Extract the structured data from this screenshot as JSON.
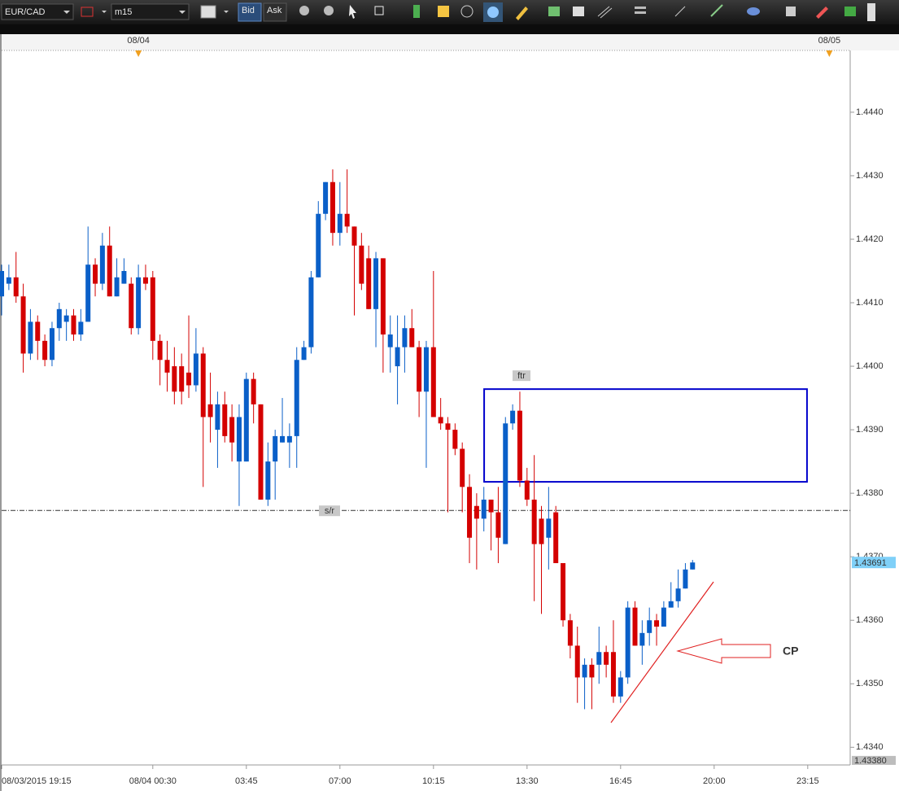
{
  "toolbar": {
    "symbol": "EUR/CAD",
    "timeframe": "m15",
    "bid": "Bid",
    "ask": "Ask"
  },
  "chart_data": {
    "type": "candlestick",
    "open": [
      1.4411,
      1.4413,
      1.4414,
      1.4411,
      1.4402,
      1.4407,
      1.4404,
      1.4401,
      1.4406,
      1.4407,
      1.4408,
      1.4405,
      1.4407,
      1.4416,
      1.4413,
      1.4419,
      1.4411,
      1.4413,
      1.4413,
      1.4406,
      1.4414,
      1.4414,
      1.4404,
      1.4401,
      1.44,
      1.44,
      1.4399,
      1.4397,
      1.4402,
      1.4394,
      1.439,
      1.4394,
      1.4392,
      1.4385,
      1.4385,
      1.4398,
      1.4394,
      1.4379,
      1.4385,
      1.4388,
      1.4388,
      1.4389,
      1.4401,
      1.4403,
      1.4414,
      1.4424,
      1.4429,
      1.4421,
      1.4424,
      1.4422,
      1.4419,
      1.4417,
      1.4409,
      1.4417,
      1.4403,
      1.44,
      1.4403,
      1.4406,
      1.4403,
      1.4396,
      1.4403,
      1.4392,
      1.4391,
      1.439,
      1.4387,
      1.4381,
      1.4378,
      1.4376,
      1.4379,
      1.4377,
      1.4372,
      1.4391,
      1.4393,
      1.4382,
      1.4379,
      1.4376,
      1.4373,
      1.4377,
      1.4369,
      1.436,
      1.4356,
      1.4351,
      1.4353,
      1.4353,
      1.4355,
      1.4355,
      1.4348,
      1.4351,
      1.4362,
      1.4356,
      1.4358,
      1.436,
      1.4359,
      1.4362,
      1.4363,
      1.4365,
      1.4368
    ],
    "high": [
      1.4416,
      1.4416,
      1.4418,
      1.4413,
      1.4409,
      1.4408,
      1.4405,
      1.4407,
      1.441,
      1.4409,
      1.4409,
      1.4409,
      1.4422,
      1.4417,
      1.4421,
      1.4422,
      1.4417,
      1.4417,
      1.4414,
      1.4416,
      1.4416,
      1.4415,
      1.4405,
      1.4404,
      1.4403,
      1.4402,
      1.4408,
      1.4406,
      1.4403,
      1.4399,
      1.4396,
      1.4396,
      1.4394,
      1.4394,
      1.4399,
      1.4399,
      1.4394,
      1.4388,
      1.439,
      1.4395,
      1.4391,
      1.4403,
      1.4404,
      1.4415,
      1.4426,
      1.4429,
      1.4431,
      1.4429,
      1.4431,
      1.4422,
      1.4421,
      1.4419,
      1.4418,
      1.4417,
      1.4408,
      1.4408,
      1.4408,
      1.4409,
      1.4404,
      1.4404,
      1.4415,
      1.4395,
      1.4392,
      1.4391,
      1.4388,
      1.4383,
      1.438,
      1.4381,
      1.4379,
      1.4381,
      1.4392,
      1.4394,
      1.4396,
      1.4384,
      1.4386,
      1.4378,
      1.4381,
      1.4378,
      1.4369,
      1.4361,
      1.4359,
      1.4354,
      1.4354,
      1.4359,
      1.4356,
      1.436,
      1.4352,
      1.4363,
      1.4363,
      1.436,
      1.4362,
      1.4361,
      1.4363,
      1.4366,
      1.4368,
      1.4369,
      1.43695
    ],
    "low": [
      1.4408,
      1.4412,
      1.441,
      1.4399,
      1.4401,
      1.4401,
      1.44,
      1.44,
      1.4404,
      1.4404,
      1.4404,
      1.4404,
      1.4407,
      1.4411,
      1.4412,
      1.4411,
      1.4411,
      1.4413,
      1.4405,
      1.4405,
      1.4412,
      1.4401,
      1.4397,
      1.4396,
      1.4394,
      1.4394,
      1.4395,
      1.4396,
      1.4381,
      1.4388,
      1.4384,
      1.4388,
      1.4385,
      1.4378,
      1.4385,
      1.4391,
      1.4379,
      1.4378,
      1.4379,
      1.4388,
      1.4384,
      1.4384,
      1.4401,
      1.4402,
      1.4414,
      1.4423,
      1.4419,
      1.4419,
      1.4421,
      1.4408,
      1.4412,
      1.4409,
      1.4403,
      1.4399,
      1.4399,
      1.4394,
      1.4399,
      1.4403,
      1.4392,
      1.4384,
      1.4392,
      1.439,
      1.4377,
      1.4386,
      1.4377,
      1.4369,
      1.4368,
      1.4374,
      1.4371,
      1.4369,
      1.4372,
      1.439,
      1.4381,
      1.4378,
      1.4363,
      1.4361,
      1.4368,
      1.4369,
      1.4359,
      1.4354,
      1.4347,
      1.4346,
      1.4346,
      1.435,
      1.4351,
      1.4347,
      1.4347,
      1.435,
      1.4356,
      1.4353,
      1.4356,
      1.4356,
      1.4359,
      1.4362,
      1.4362,
      1.4365,
      1.4368
    ],
    "close": [
      1.4415,
      1.4414,
      1.4411,
      1.4402,
      1.4407,
      1.4404,
      1.4401,
      1.4406,
      1.4409,
      1.4408,
      1.4405,
      1.4407,
      1.4416,
      1.4413,
      1.4419,
      1.4411,
      1.4414,
      1.4415,
      1.4406,
      1.4414,
      1.4413,
      1.4404,
      1.4401,
      1.4399,
      1.4396,
      1.4396,
      1.4397,
      1.4402,
      1.4392,
      1.4392,
      1.4394,
      1.4389,
      1.4388,
      1.4392,
      1.4398,
      1.4394,
      1.4379,
      1.4385,
      1.4389,
      1.4389,
      1.4389,
      1.4401,
      1.4403,
      1.4414,
      1.4424,
      1.4429,
      1.4421,
      1.4424,
      1.4422,
      1.4419,
      1.4413,
      1.4409,
      1.4417,
      1.4405,
      1.4405,
      1.4403,
      1.4406,
      1.4403,
      1.4396,
      1.4403,
      1.4392,
      1.4391,
      1.439,
      1.4387,
      1.4381,
      1.4373,
      1.4376,
      1.4379,
      1.4377,
      1.4373,
      1.4391,
      1.4393,
      1.4382,
      1.4379,
      1.4372,
      1.4372,
      1.4376,
      1.4369,
      1.436,
      1.4356,
      1.4351,
      1.4353,
      1.4351,
      1.4355,
      1.4353,
      1.4348,
      1.4351,
      1.4362,
      1.4356,
      1.4358,
      1.436,
      1.4359,
      1.4362,
      1.4363,
      1.4365,
      1.4368,
      1.43691
    ],
    "colors": {
      "up": "#0a5fc8",
      "down": "#d40000"
    },
    "xlim": [
      -0.23,
      117.9
    ],
    "xticks": [
      {
        "value": 0,
        "label": "08/03/2015 19:15"
      },
      {
        "value": 21,
        "label": "08/04 00:30"
      },
      {
        "value": 34,
        "label": "03:45"
      },
      {
        "value": 47,
        "label": "07:00"
      },
      {
        "value": 60,
        "label": "10:15"
      },
      {
        "value": 73,
        "label": "13:30"
      },
      {
        "value": 86,
        "label": "16:45"
      },
      {
        "value": 99,
        "label": "20:00"
      },
      {
        "value": 112,
        "label": "23:15"
      }
    ],
    "x2ticks": [
      {
        "value": 19,
        "label": "08/04"
      },
      {
        "value": 115,
        "label": "08/05"
      }
    ],
    "ylim": [
      1.43385,
      1.44487
    ],
    "yticks": [
      {
        "value": 1.434,
        "label": "1.4340"
      },
      {
        "value": 1.435,
        "label": "1.4350"
      },
      {
        "value": 1.436,
        "label": "1.4360"
      },
      {
        "value": 1.437,
        "label": "1.4370"
      },
      {
        "value": 1.438,
        "label": "1.4380"
      },
      {
        "value": 1.439,
        "label": "1.4390"
      },
      {
        "value": 1.44,
        "label": "1.4400"
      },
      {
        "value": 1.441,
        "label": "1.4410"
      },
      {
        "value": 1.442,
        "label": "1.4420"
      },
      {
        "value": 1.443,
        "label": "1.4430"
      },
      {
        "value": 1.444,
        "label": "1.4440"
      }
    ],
    "last_price": {
      "value": 1.43691,
      "label": "1.43691"
    },
    "bottom_price": {
      "value": 1.4338,
      "label": "1.43380"
    },
    "hline": {
      "value": 1.43773,
      "label": "s/r"
    },
    "zone": {
      "label": "ftr",
      "xlim": [
        67.04,
        111.9
      ],
      "ylim": [
        1.43818,
        1.43964
      ],
      "color": "#0000cc"
    },
    "annotation": {
      "text": "CP",
      "color": "#e02020"
    }
  }
}
